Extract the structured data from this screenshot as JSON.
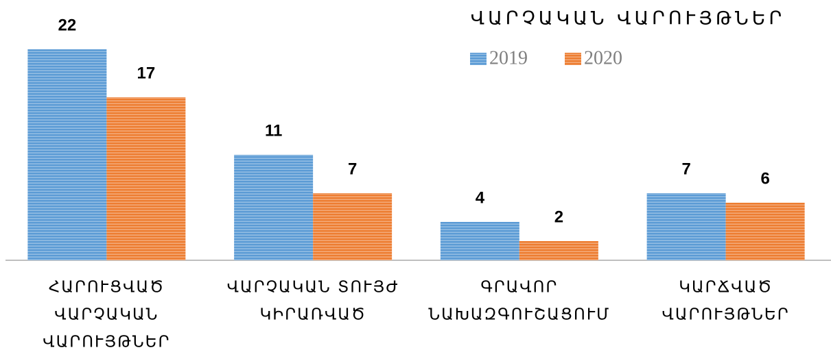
{
  "chart_data": {
    "type": "bar",
    "title": "ՎԱՐՉԱԿԱՆ ՎԱՐՈՒՅԹՆԵՐ",
    "categories": [
      [
        "ՀԱՐՈՒՑՎԱԾ",
        "ՎԱՐՉԱԿԱՆ",
        "ՎԱՐՈՒՅԹՆԵՐ"
      ],
      [
        "ՎԱՐՉԱԿԱՆ ՏՈՒՅԺ",
        "ԿԻՐԱՌՎԱԾ"
      ],
      [
        "ԳՐԱՎՈՐ",
        "ՆԱԽԱԶԳՈՒՇԱՑՈՒՄ"
      ],
      [
        "ԿԱՐՃՎԱԾ",
        "ՎԱՐՈՒՅԹՆԵՐ"
      ]
    ],
    "series": [
      {
        "name": "2019",
        "color": "#5b9bd5",
        "values": [
          22,
          11,
          4,
          7
        ]
      },
      {
        "name": "2020",
        "color": "#ed7d31",
        "values": [
          17,
          7,
          2,
          6
        ]
      }
    ],
    "ylim": [
      0,
      22
    ]
  }
}
